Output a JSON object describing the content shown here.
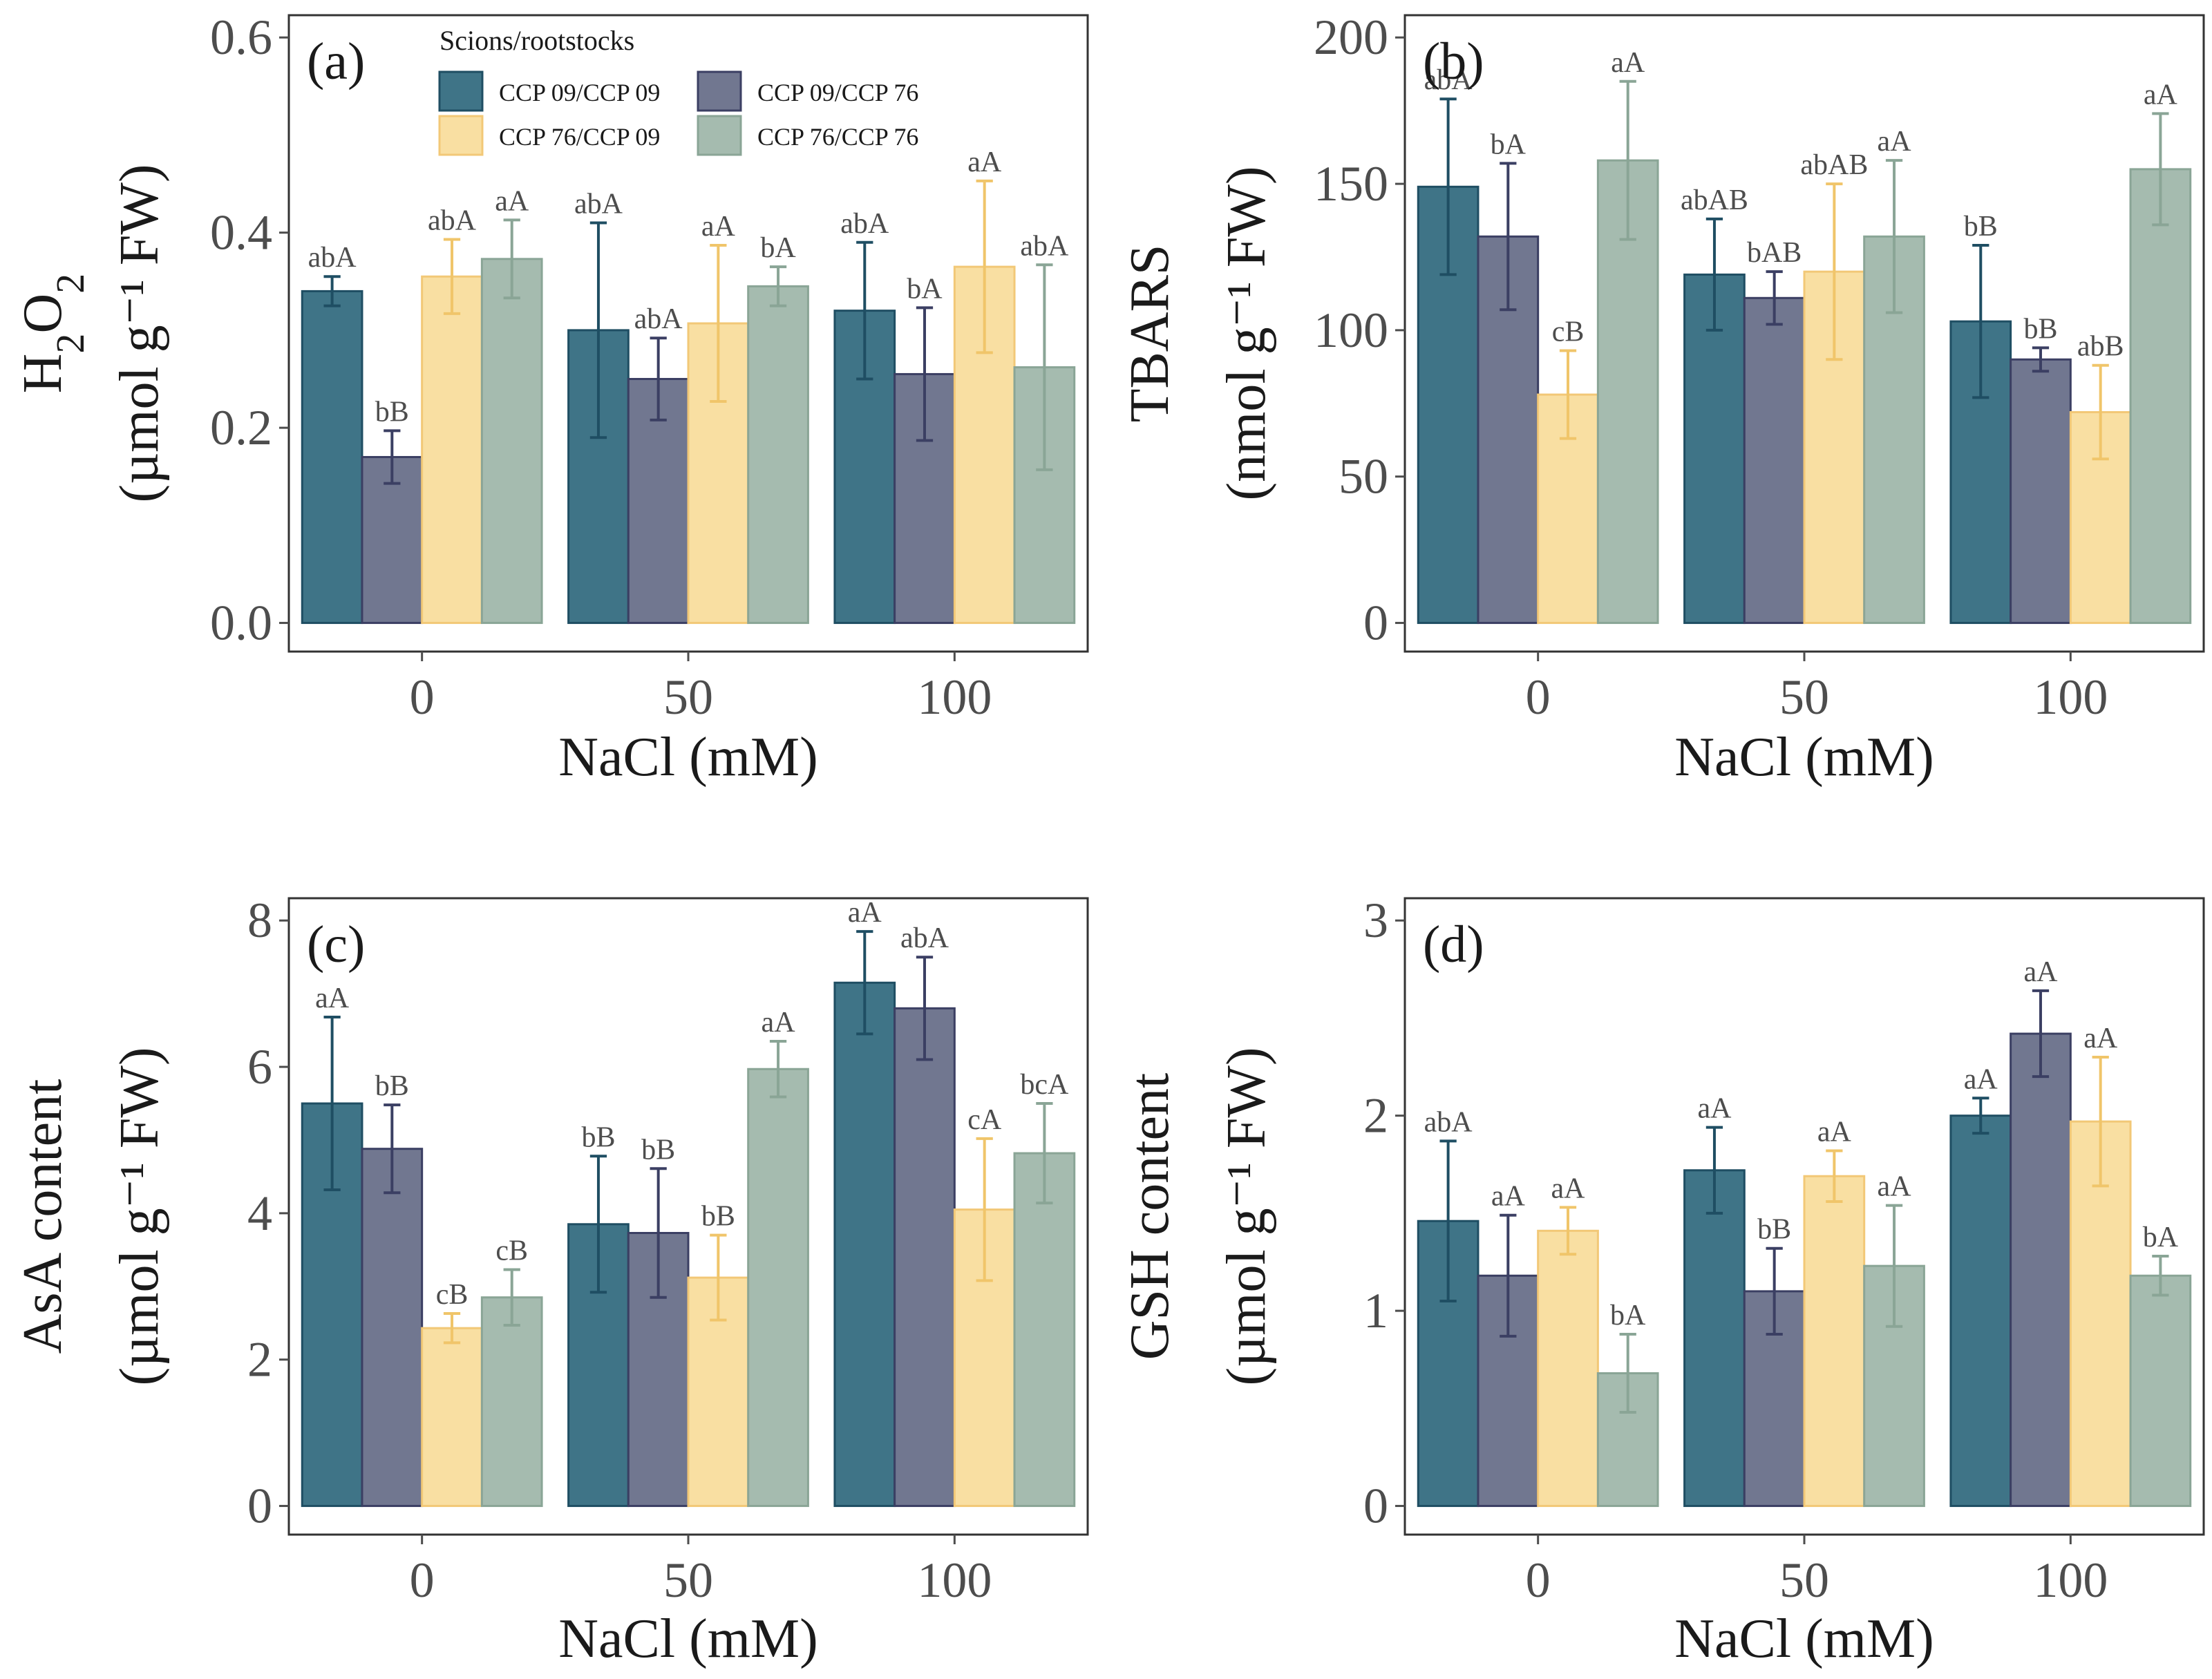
{
  "chart_data": [
    {
      "type": "bar",
      "panel": "(a)",
      "xlabel": "NaCl (mM)",
      "ylabel_line1": "H2O2",
      "ylabel_line2": "(µmol g⁻¹ FW)",
      "categories": [
        "0",
        "50",
        "100"
      ],
      "ylim": [
        0,
        0.6
      ],
      "yticks": [
        0.0,
        0.2,
        0.4,
        0.6
      ],
      "yticklabels": [
        "0.0",
        "0.2",
        "0.4",
        "0.6"
      ],
      "series": [
        {
          "name": "CCP 09/CCP 09",
          "values": [
            0.34,
            0.3,
            0.32
          ],
          "errors": [
            0.015,
            0.11,
            0.07
          ],
          "labels": [
            "abA",
            "abA",
            "abA"
          ]
        },
        {
          "name": "CCP 09/CCP 76",
          "values": [
            0.17,
            0.25,
            0.255
          ],
          "errors": [
            0.027,
            0.042,
            0.068
          ],
          "labels": [
            "bB",
            "abA",
            "bA"
          ]
        },
        {
          "name": "CCP 76/CCP 09",
          "values": [
            0.355,
            0.307,
            0.365
          ],
          "errors": [
            0.038,
            0.08,
            0.088
          ],
          "labels": [
            "abA",
            "aA",
            "aA"
          ]
        },
        {
          "name": "CCP 76/CCP 76",
          "values": [
            0.373,
            0.345,
            0.262
          ],
          "errors": [
            0.04,
            0.02,
            0.105
          ],
          "labels": [
            "aA",
            "bA",
            "abA"
          ]
        }
      ]
    },
    {
      "type": "bar",
      "panel": "(b)",
      "xlabel": "NaCl (mM)",
      "ylabel_line1": "TBARS",
      "ylabel_line2": "(nmol g⁻¹ FW)",
      "categories": [
        "0",
        "50",
        "100"
      ],
      "ylim": [
        0,
        200
      ],
      "yticks": [
        0,
        50,
        100,
        150,
        200
      ],
      "yticklabels": [
        "0",
        "50",
        "100",
        "150",
        "200"
      ],
      "series": [
        {
          "name": "CCP 09/CCP 09",
          "values": [
            149,
            119,
            103
          ],
          "errors": [
            30,
            19,
            26
          ],
          "labels": [
            "abA",
            "abAB",
            "bB"
          ]
        },
        {
          "name": "CCP 09/CCP 76",
          "values": [
            132,
            111,
            90
          ],
          "errors": [
            25,
            9,
            4
          ],
          "labels": [
            "bA",
            "bAB",
            "bB"
          ]
        },
        {
          "name": "CCP 76/CCP 09",
          "values": [
            78,
            120,
            72
          ],
          "errors": [
            15,
            30,
            16
          ],
          "labels": [
            "cB",
            "abAB",
            "abB"
          ]
        },
        {
          "name": "CCP 76/CCP 76",
          "values": [
            158,
            132,
            155
          ],
          "errors": [
            27,
            26,
            19
          ],
          "labels": [
            "aA",
            "aA",
            "aA"
          ]
        }
      ]
    },
    {
      "type": "bar",
      "panel": "(c)",
      "xlabel": "NaCl (mM)",
      "ylabel_line1": "AsA content",
      "ylabel_line2": "(µmol g⁻¹ FW)",
      "categories": [
        "0",
        "50",
        "100"
      ],
      "ylim": [
        0,
        8
      ],
      "yticks": [
        0,
        2,
        4,
        6,
        8
      ],
      "yticklabels": [
        "0",
        "2",
        "4",
        "6",
        "8"
      ],
      "series": [
        {
          "name": "CCP 09/CCP 09",
          "values": [
            5.5,
            3.85,
            7.15
          ],
          "errors": [
            1.18,
            0.93,
            0.7
          ],
          "labels": [
            "aA",
            "bB",
            "aA"
          ]
        },
        {
          "name": "CCP 09/CCP 76",
          "values": [
            4.88,
            3.73,
            6.8
          ],
          "errors": [
            0.6,
            0.88,
            0.7
          ],
          "labels": [
            "bB",
            "bB",
            "abA"
          ]
        },
        {
          "name": "CCP 76/CCP 09",
          "values": [
            2.43,
            3.12,
            4.05
          ],
          "errors": [
            0.2,
            0.58,
            0.97
          ],
          "labels": [
            "cB",
            "bB",
            "cA"
          ]
        },
        {
          "name": "CCP 76/CCP 76",
          "values": [
            2.85,
            5.97,
            4.82
          ],
          "errors": [
            0.38,
            0.38,
            0.68
          ],
          "labels": [
            "cB",
            "aA",
            "bcA"
          ]
        }
      ]
    },
    {
      "type": "bar",
      "panel": "(d)",
      "xlabel": "NaCl (mM)",
      "ylabel_line1": "GSH content",
      "ylabel_line2": "(µmol g⁻¹ FW)",
      "categories": [
        "0",
        "50",
        "100"
      ],
      "ylim": [
        0,
        3
      ],
      "yticks": [
        0,
        1,
        2,
        3
      ],
      "yticklabels": [
        "0",
        "1",
        "2",
        "3"
      ],
      "series": [
        {
          "name": "CCP 09/CCP 09",
          "values": [
            1.46,
            1.72,
            2.0
          ],
          "errors": [
            0.41,
            0.22,
            0.09
          ],
          "labels": [
            "abA",
            "aA",
            "aA"
          ]
        },
        {
          "name": "CCP 09/CCP 76",
          "values": [
            1.18,
            1.1,
            2.42
          ],
          "errors": [
            0.31,
            0.22,
            0.22
          ],
          "labels": [
            "aA",
            "bB",
            "aA"
          ]
        },
        {
          "name": "CCP 76/CCP 09",
          "values": [
            1.41,
            1.69,
            1.97
          ],
          "errors": [
            0.12,
            0.13,
            0.33
          ],
          "labels": [
            "aA",
            "aA",
            "aA"
          ]
        },
        {
          "name": "CCP 76/CCP 76",
          "values": [
            0.68,
            1.23,
            1.18
          ],
          "errors": [
            0.2,
            0.31,
            0.1
          ],
          "labels": [
            "bA",
            "aA",
            "bA"
          ]
        }
      ]
    }
  ],
  "legend": {
    "title": "Scions/rootstocks",
    "items": [
      "CCP 09/CCP 09",
      "CCP 09/CCP 76",
      "CCP 76/CCP 09",
      "CCP 76/CCP 76"
    ]
  },
  "colors": {
    "series_fill": [
      "#3f7487",
      "#717790",
      "#f9dfa2",
      "#a5bbaf"
    ],
    "series_stroke": [
      "#1f4e63",
      "#3b3f63",
      "#f2c877",
      "#8aa596"
    ],
    "panel_border": "#333333",
    "tick": "#4d4d4d",
    "text": "#1a1a1a"
  }
}
